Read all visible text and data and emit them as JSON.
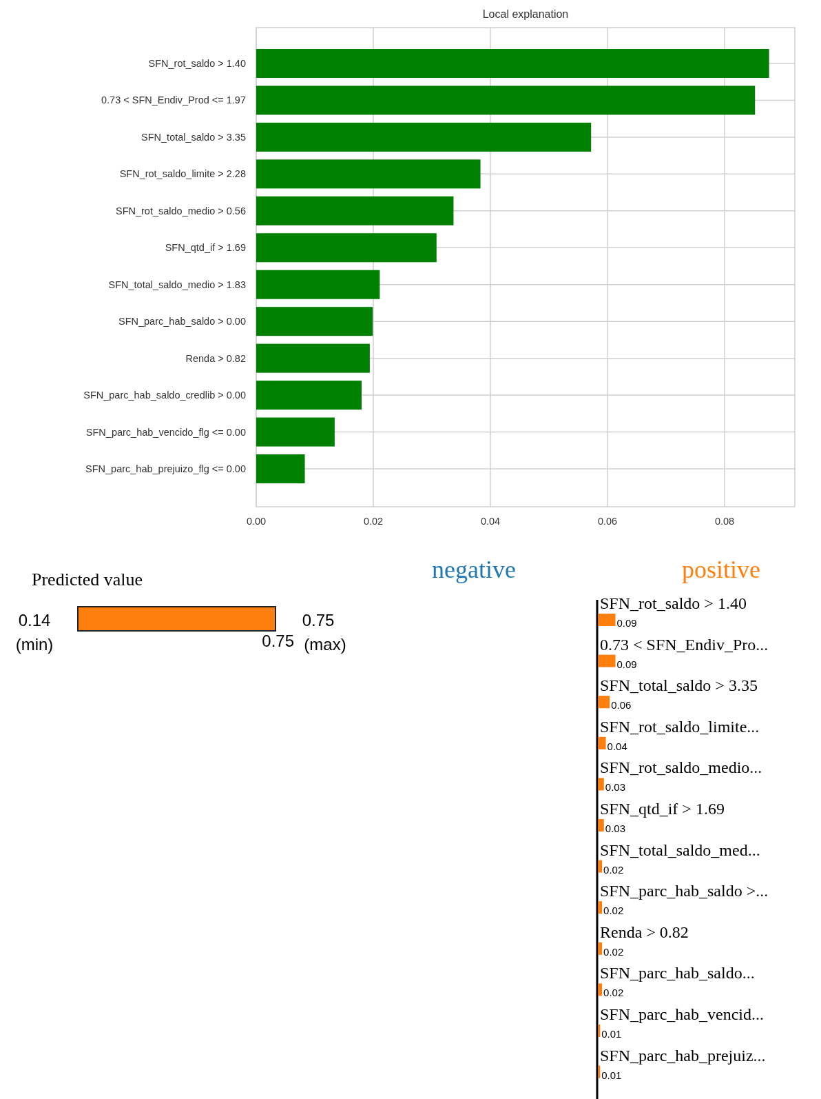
{
  "chart_data": [
    {
      "type": "bar",
      "orientation": "horizontal",
      "title": "Local explanation",
      "categories": [
        "SFN_rot_saldo > 1.40",
        "0.73 < SFN_Endiv_Prod <= 1.97",
        "SFN_total_saldo > 3.35",
        "SFN_rot_saldo_limite > 2.28",
        "SFN_rot_saldo_medio > 0.56",
        "SFN_qtd_if > 1.69",
        "SFN_total_saldo_medio > 1.83",
        "SFN_parc_hab_saldo > 0.00",
        "Renda > 0.82",
        "SFN_parc_hab_saldo_credlib > 0.00",
        "SFN_parc_hab_vencido_flg <= 0.00",
        "SFN_parc_hab_prejuizo_flg <= 0.00"
      ],
      "values": [
        0.0876,
        0.0852,
        0.0572,
        0.0383,
        0.0337,
        0.0308,
        0.0211,
        0.0199,
        0.0194,
        0.018,
        0.0134,
        0.0083
      ],
      "color": "#008000",
      "xlim": [
        0,
        0.092
      ],
      "xticks": [
        {
          "value": 0,
          "label": "0.00"
        },
        {
          "value": 0.02,
          "label": "0.02"
        },
        {
          "value": 0.04,
          "label": "0.04"
        },
        {
          "value": 0.06,
          "label": "0.06"
        },
        {
          "value": 0.08,
          "label": "0.08"
        }
      ],
      "grid": true
    },
    {
      "type": "other",
      "title": "Predicted value",
      "values": [
        0.75
      ],
      "color": "#ff7f0e",
      "annotations": [
        "0.14 (min)",
        "0.75 (max)"
      ],
      "data_labels": true
    },
    {
      "type": "bar",
      "orientation": "horizontal",
      "categories": [
        "SFN_rot_saldo > 1.40",
        "0.73 < SFN_Endiv_Pro...",
        "SFN_total_saldo > 3.35",
        "SFN_rot_saldo_limite...",
        "SFN_rot_saldo_medio...",
        "SFN_qtd_if > 1.69",
        "SFN_total_saldo_med...",
        "SFN_parc_hab_saldo >...",
        "Renda > 0.82",
        "SFN_parc_hab_saldo...",
        "SFN_parc_hab_vencid...",
        "SFN_parc_hab_prejuiz..."
      ],
      "series": [
        {
          "name": "negative",
          "color": "#1f77b4",
          "values": [
            null,
            null,
            null,
            null,
            null,
            null,
            null,
            null,
            null,
            null,
            null,
            null
          ]
        },
        {
          "name": "positive",
          "color": "#ff7f0e",
          "values": [
            0.09,
            0.09,
            0.06,
            0.04,
            0.03,
            0.03,
            0.02,
            0.02,
            0.02,
            0.02,
            0.01,
            0.01
          ]
        }
      ],
      "data_labels": true,
      "legend": "top"
    }
  ]
}
